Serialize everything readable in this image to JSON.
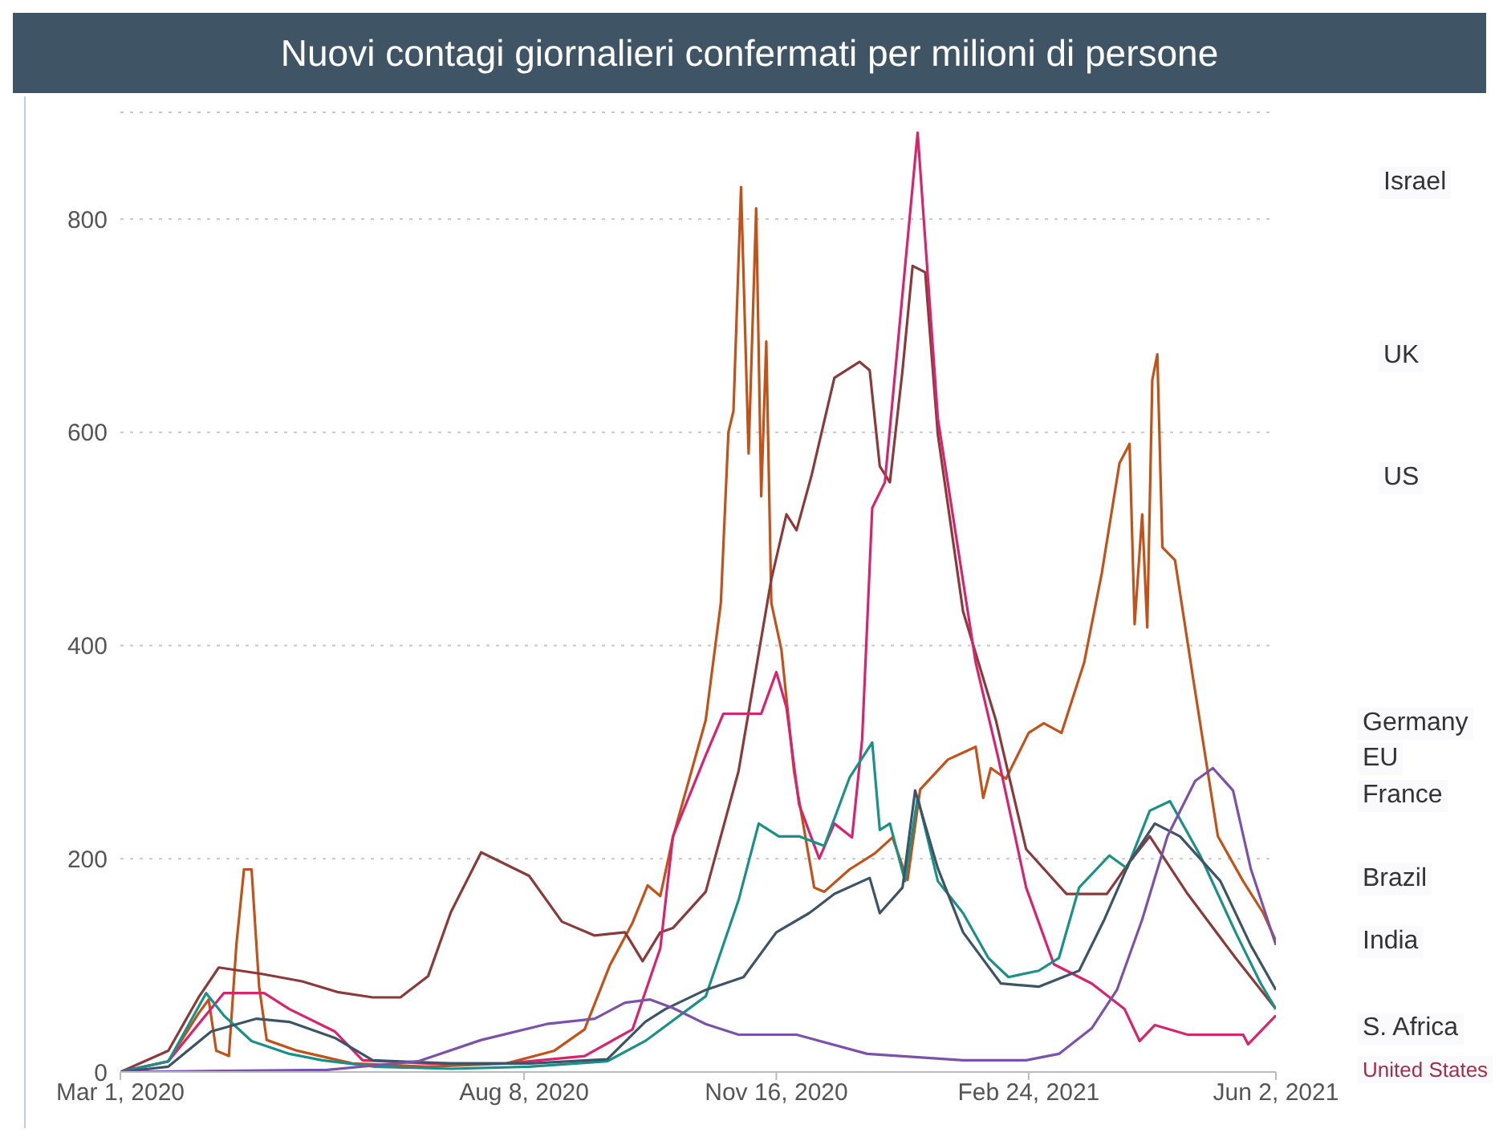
{
  "chart_data": {
    "type": "line",
    "title": "Nuovi contagi giornalieri confermati per milioni di persone",
    "xlim": [
      "2020-03-01",
      "2021-06-02"
    ],
    "xticks": [
      {
        "value": "2020-03-01",
        "label": "Mar 1, 2020"
      },
      {
        "value": "2020-08-08",
        "label": "Aug 8, 2020"
      },
      {
        "value": "2020-11-16",
        "label": "Nov 16, 2020"
      },
      {
        "value": "2021-02-24",
        "label": "Feb 24, 2021"
      },
      {
        "value": "2021-06-02",
        "label": "Jun 2, 2021"
      }
    ],
    "ylim": [
      0,
      900
    ],
    "yticks": [
      0,
      200,
      400,
      600,
      800
    ],
    "grid": "y",
    "marker": "none",
    "line_style": "solid",
    "annotations": [
      "Israel",
      "UK",
      "US",
      "Germany",
      "EU",
      "France",
      "Brazil",
      "India",
      "S. Africa",
      "United States"
    ],
    "series": [
      {
        "color": "#c0521a",
        "x": [
          "2020-03-01",
          "2020-03-20",
          "2020-04-01",
          "2020-04-05",
          "2020-04-08",
          "2020-04-13",
          "2020-04-16",
          "2020-04-19",
          "2020-04-22",
          "2020-04-25",
          "2020-04-28",
          "2020-05-10",
          "2020-06-01",
          "2020-07-01",
          "2020-08-01",
          "2020-08-20",
          "2020-09-01",
          "2020-09-11",
          "2020-09-20",
          "2020-09-26",
          "2020-10-01",
          "2020-10-06",
          "2020-10-19",
          "2020-10-25",
          "2020-10-28",
          "2020-10-30",
          "2020-11-02",
          "2020-11-05",
          "2020-11-08",
          "2020-11-10",
          "2020-11-12",
          "2020-11-14",
          "2020-11-18",
          "2020-11-23",
          "2020-12-01",
          "2020-12-05",
          "2020-12-15",
          "2020-12-25",
          "2021-01-01",
          "2021-01-07",
          "2021-01-12",
          "2021-01-23",
          "2021-02-03",
          "2021-02-06",
          "2021-02-09",
          "2021-02-15",
          "2021-02-24",
          "2021-03-02",
          "2021-03-09",
          "2021-03-18",
          "2021-03-25",
          "2021-04-01",
          "2021-04-05",
          "2021-04-07",
          "2021-04-10",
          "2021-04-12",
          "2021-04-14",
          "2021-04-16",
          "2021-04-18",
          "2021-04-23",
          "2021-04-30",
          "2021-05-10",
          "2021-05-20",
          "2021-05-28",
          "2021-06-02"
        ],
        "values": [
          0,
          10,
          55,
          68,
          20,
          15,
          120,
          190,
          190,
          80,
          30,
          20,
          8,
          5,
          8,
          20,
          40,
          100,
          140,
          175,
          165,
          220,
          330,
          440,
          600,
          620,
          830,
          580,
          810,
          540,
          685,
          440,
          396,
          282,
          173,
          169,
          190,
          205,
          220,
          180,
          265,
          293,
          305,
          257,
          285,
          275,
          318,
          327,
          318,
          384,
          468,
          571,
          589,
          420,
          523,
          417,
          649,
          673,
          492,
          480,
          372,
          221,
          179,
          149,
          123
        ]
      },
      {
        "color": "#8b3a3a",
        "x": [
          "2020-03-01",
          "2020-03-20",
          "2020-04-01",
          "2020-04-09",
          "2020-04-26",
          "2020-05-12",
          "2020-05-26",
          "2020-06-09",
          "2020-06-20",
          "2020-07-01",
          "2020-07-10",
          "2020-07-22",
          "2020-08-10",
          "2020-08-23",
          "2020-09-05",
          "2020-09-17",
          "2020-09-24",
          "2020-10-01",
          "2020-10-06",
          "2020-10-19",
          "2020-11-01",
          "2020-11-14",
          "2020-11-20",
          "2020-11-24",
          "2020-11-30",
          "2020-12-09",
          "2020-12-19",
          "2020-12-23",
          "2020-12-27",
          "2020-12-31",
          "2021-01-05",
          "2021-01-09",
          "2021-01-14",
          "2021-01-19",
          "2021-01-29",
          "2021-02-11",
          "2021-02-23",
          "2021-03-11",
          "2021-03-27",
          "2021-04-05",
          "2021-04-13",
          "2021-04-28",
          "2021-05-17",
          "2021-06-02"
        ],
        "values": [
          0,
          20,
          70,
          98,
          92,
          85,
          75,
          70,
          70,
          90,
          150,
          206,
          184,
          141,
          128,
          131,
          104,
          131,
          135,
          169,
          282,
          462,
          523,
          508,
          560,
          651,
          666,
          658,
          568,
          553,
          658,
          756,
          750,
          598,
          432,
          330,
          209,
          167,
          167,
          197,
          221,
          167,
          107,
          59
        ]
      },
      {
        "color": "#d6246e",
        "x": [
          "2020-03-01",
          "2020-03-20",
          "2020-04-01",
          "2020-04-11",
          "2020-04-27",
          "2020-05-07",
          "2020-05-25",
          "2020-06-05",
          "2020-07-01",
          "2020-08-01",
          "2020-09-01",
          "2020-09-20",
          "2020-10-01",
          "2020-10-06",
          "2020-10-19",
          "2020-10-26",
          "2020-11-10",
          "2020-11-16",
          "2020-11-20",
          "2020-11-25",
          "2020-12-03",
          "2020-12-09",
          "2020-12-16",
          "2020-12-20",
          "2020-12-24",
          "2020-12-29",
          "2021-01-11",
          "2021-01-19",
          "2021-02-03",
          "2021-02-12",
          "2021-02-23",
          "2021-03-06",
          "2021-03-21",
          "2021-04-03",
          "2021-04-09",
          "2021-04-15",
          "2021-04-28",
          "2021-05-20",
          "2021-05-22",
          "2021-06-02"
        ],
        "values": [
          0,
          10,
          45,
          74,
          74,
          59,
          38,
          11,
          8,
          8,
          15,
          40,
          116,
          221,
          297,
          336,
          336,
          375,
          342,
          251,
          200,
          233,
          220,
          312,
          529,
          553,
          881,
          613,
          384,
          294,
          173,
          101,
          83,
          59,
          29,
          44,
          35,
          35,
          26,
          53
        ]
      },
      {
        "color": "#1a9088",
        "x": [
          "2020-03-01",
          "2020-03-20",
          "2020-04-04",
          "2020-04-11",
          "2020-04-22",
          "2020-05-07",
          "2020-05-20",
          "2020-06-10",
          "2020-07-10",
          "2020-08-10",
          "2020-09-10",
          "2020-09-25",
          "2020-10-19",
          "2020-11-01",
          "2020-11-09",
          "2020-11-17",
          "2020-11-25",
          "2020-12-05",
          "2020-12-15",
          "2020-12-24",
          "2020-12-27",
          "2020-12-31",
          "2021-01-06",
          "2021-01-11",
          "2021-01-19",
          "2021-01-29",
          "2021-02-08",
          "2021-02-16",
          "2021-02-28",
          "2021-03-08",
          "2021-03-16",
          "2021-03-28",
          "2021-04-04",
          "2021-04-13",
          "2021-04-21",
          "2021-05-03",
          "2021-05-17",
          "2021-05-27",
          "2021-06-02"
        ],
        "values": [
          0,
          10,
          74,
          53,
          29,
          17,
          11,
          5,
          3,
          5,
          10,
          29,
          71,
          161,
          233,
          221,
          221,
          212,
          276,
          309,
          227,
          233,
          179,
          258,
          179,
          149,
          107,
          89,
          95,
          107,
          173,
          203,
          191,
          245,
          254,
          203,
          131,
          83,
          59
        ]
      },
      {
        "color": "#3d5468",
        "x": [
          "2020-03-01",
          "2020-03-20",
          "2020-04-06",
          "2020-04-24",
          "2020-05-07",
          "2020-05-25",
          "2020-06-09",
          "2020-07-10",
          "2020-08-10",
          "2020-09-10",
          "2020-09-25",
          "2020-10-03",
          "2020-10-19",
          "2020-11-03",
          "2020-11-16",
          "2020-11-29",
          "2020-12-09",
          "2020-12-23",
          "2020-12-27",
          "2021-01-05",
          "2021-01-10",
          "2021-01-19",
          "2021-01-29",
          "2021-02-13",
          "2021-02-28",
          "2021-03-16",
          "2021-03-26",
          "2021-04-05",
          "2021-04-15",
          "2021-04-25",
          "2021-05-11",
          "2021-05-23",
          "2021-06-02"
        ],
        "values": [
          0,
          5,
          38,
          50,
          47,
          32,
          11,
          8,
          8,
          12,
          47,
          59,
          77,
          89,
          131,
          149,
          167,
          182,
          149,
          173,
          264,
          191,
          131,
          83,
          80,
          95,
          143,
          197,
          233,
          221,
          179,
          119,
          77
        ]
      },
      {
        "color": "#7b52a8",
        "x": [
          "2020-03-01",
          "2020-05-22",
          "2020-06-27",
          "2020-07-22",
          "2020-08-17",
          "2020-09-05",
          "2020-09-17",
          "2020-09-27",
          "2020-10-06",
          "2020-10-19",
          "2020-11-01",
          "2020-11-24",
          "2020-12-22",
          "2021-01-29",
          "2021-02-23",
          "2021-03-08",
          "2021-03-21",
          "2021-03-31",
          "2021-04-10",
          "2021-04-20",
          "2021-05-01",
          "2021-05-08",
          "2021-05-16",
          "2021-05-23",
          "2021-06-02"
        ],
        "values": [
          0,
          2,
          10,
          30,
          45,
          50,
          65,
          68,
          60,
          45,
          35,
          35,
          17,
          11,
          11,
          17,
          41,
          77,
          143,
          221,
          273,
          285,
          264,
          191,
          119
        ]
      }
    ]
  }
}
